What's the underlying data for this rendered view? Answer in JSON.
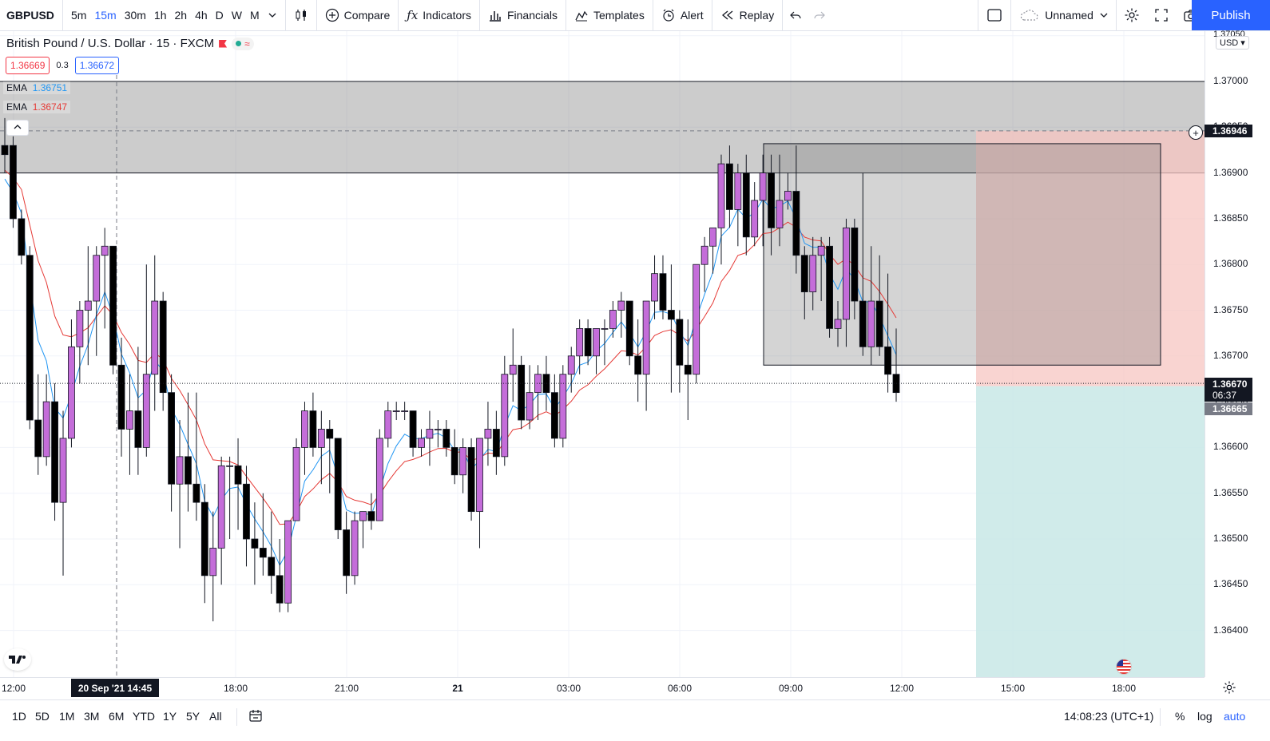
{
  "toolbar": {
    "symbol": "GBPUSD",
    "intervals": [
      "5m",
      "15m",
      "30m",
      "1h",
      "2h",
      "4h",
      "D",
      "W",
      "M"
    ],
    "active_interval": "15m",
    "compare": "Compare",
    "indicators": "Indicators",
    "financials": "Financials",
    "templates": "Templates",
    "alert": "Alert",
    "replay": "Replay",
    "layout_name": "Unnamed",
    "publish": "Publish"
  },
  "legend": {
    "title": "British Pound / U.S. Dollar · 15 · FXCM",
    "bid": "1.36669",
    "spread": "0.3",
    "ask": "1.36672",
    "ema1_label": "EMA",
    "ema1_value": "1.36751",
    "ema2_label": "EMA",
    "ema2_value": "1.36747"
  },
  "colors": {
    "bull": "#c46dd9",
    "bear": "#000000",
    "ema_fast": "#2196f3",
    "ema_slow": "#e53935",
    "accent": "#2962ff",
    "stop_zone": "#f7c5c1",
    "target_zone": "#c8e8e6"
  },
  "price_axis": {
    "currency": "USD",
    "ticks": [
      "1.37050",
      "1.37000",
      "1.36950",
      "1.36900",
      "1.36850",
      "1.36800",
      "1.36750",
      "1.36700",
      "1.36650",
      "1.36600",
      "1.36550",
      "1.36500",
      "1.36450",
      "1.36400"
    ],
    "crosshair_price": "1.36946",
    "last_price": "1.36670",
    "countdown": "06:37",
    "bid_tag": "1.36665"
  },
  "time_axis": {
    "labels": [
      "12:00",
      "18:00",
      "21:00",
      "21",
      "03:00",
      "06:00",
      "09:00",
      "12:00",
      "15:00",
      "18:00"
    ],
    "crosshair_time": "20 Sep '21   14:45"
  },
  "bottom": {
    "ranges": [
      "1D",
      "5D",
      "1M",
      "3M",
      "6M",
      "YTD",
      "1Y",
      "5Y",
      "All"
    ],
    "clock": "14:08:23 (UTC+1)",
    "percent": "%",
    "log": "log",
    "auto": "auto"
  },
  "chart_data": {
    "type": "candlestick",
    "x_ticks": [
      "12:00",
      "18:00",
      "21:00",
      "21",
      "03:00",
      "06:00",
      "09:00",
      "12:00",
      "15:00",
      "18:00"
    ],
    "y_ticks": [
      1.3705,
      1.37,
      1.3695,
      1.369,
      1.3685,
      1.368,
      1.3675,
      1.367,
      1.3665,
      1.366,
      1.3655,
      1.365,
      1.3645,
      1.364
    ],
    "ylim": [
      1.3636,
      1.3708
    ],
    "candles": [
      [
        1.3693,
        1.3696,
        1.369,
        1.3692
      ],
      [
        1.3693,
        1.3694,
        1.3684,
        1.3685
      ],
      [
        1.3685,
        1.3686,
        1.368,
        1.3681
      ],
      [
        1.3681,
        1.3682,
        1.3662,
        1.3663
      ],
      [
        1.3663,
        1.3668,
        1.3657,
        1.3659
      ],
      [
        1.3659,
        1.3668,
        1.3658,
        1.3665
      ],
      [
        1.3665,
        1.3667,
        1.3652,
        1.3654
      ],
      [
        1.3654,
        1.3664,
        1.3646,
        1.3661
      ],
      [
        1.3661,
        1.3674,
        1.366,
        1.3671
      ],
      [
        1.3671,
        1.3676,
        1.3667,
        1.3675
      ],
      [
        1.3675,
        1.3682,
        1.3669,
        1.3676
      ],
      [
        1.3676,
        1.3682,
        1.367,
        1.3681
      ],
      [
        1.3681,
        1.3684,
        1.3673,
        1.3682
      ],
      [
        1.3682,
        1.3682,
        1.3668,
        1.3669
      ],
      [
        1.3669,
        1.3672,
        1.3659,
        1.3662
      ],
      [
        1.3662,
        1.3668,
        1.3657,
        1.3664
      ],
      [
        1.3664,
        1.3671,
        1.3657,
        1.366
      ],
      [
        1.366,
        1.368,
        1.3659,
        1.3668
      ],
      [
        1.3668,
        1.3681,
        1.3664,
        1.3676
      ],
      [
        1.3676,
        1.3677,
        1.3664,
        1.3666
      ],
      [
        1.3666,
        1.3668,
        1.3653,
        1.3656
      ],
      [
        1.3656,
        1.3663,
        1.3649,
        1.3659
      ],
      [
        1.3659,
        1.3666,
        1.3653,
        1.3656
      ],
      [
        1.3656,
        1.3666,
        1.3652,
        1.3654
      ],
      [
        1.3654,
        1.3656,
        1.3643,
        1.3646
      ],
      [
        1.3646,
        1.3653,
        1.3641,
        1.3649
      ],
      [
        1.3649,
        1.3659,
        1.3645,
        1.3658
      ],
      [
        1.3658,
        1.3659,
        1.365,
        1.3658
      ],
      [
        1.3658,
        1.3661,
        1.3651,
        1.3656
      ],
      [
        1.3656,
        1.3658,
        1.3647,
        1.365
      ],
      [
        1.365,
        1.3654,
        1.3645,
        1.3649
      ],
      [
        1.3649,
        1.3655,
        1.3646,
        1.3648
      ],
      [
        1.3648,
        1.3653,
        1.3644,
        1.3646
      ],
      [
        1.3646,
        1.365,
        1.3642,
        1.3643
      ],
      [
        1.3643,
        1.3652,
        1.3642,
        1.3652
      ],
      [
        1.3652,
        1.3661,
        1.3652,
        1.366
      ],
      [
        1.366,
        1.3665,
        1.3657,
        1.3664
      ],
      [
        1.3664,
        1.3666,
        1.3659,
        1.366
      ],
      [
        1.366,
        1.3664,
        1.3656,
        1.3662
      ],
      [
        1.3662,
        1.3663,
        1.3655,
        1.3661
      ],
      [
        1.3661,
        1.3661,
        1.365,
        1.3651
      ],
      [
        1.3651,
        1.3653,
        1.3644,
        1.3646
      ],
      [
        1.3646,
        1.3653,
        1.3645,
        1.3652
      ],
      [
        1.3652,
        1.3653,
        1.3649,
        1.3653
      ],
      [
        1.3653,
        1.3655,
        1.3651,
        1.3652
      ],
      [
        1.3652,
        1.3662,
        1.3652,
        1.3661
      ],
      [
        1.3661,
        1.3665,
        1.366,
        1.3664
      ],
      [
        1.3664,
        1.3665,
        1.3663,
        1.3664
      ],
      [
        1.3664,
        1.3665,
        1.3663,
        1.3664
      ],
      [
        1.3664,
        1.3664,
        1.3659,
        1.366
      ],
      [
        1.366,
        1.3662,
        1.3659,
        1.3661
      ],
      [
        1.3661,
        1.3664,
        1.3658,
        1.3662
      ],
      [
        1.3662,
        1.3663,
        1.366,
        1.3662
      ],
      [
        1.3662,
        1.3663,
        1.3659,
        1.366
      ],
      [
        1.366,
        1.3662,
        1.3656,
        1.3657
      ],
      [
        1.3657,
        1.3661,
        1.3655,
        1.366
      ],
      [
        1.366,
        1.3661,
        1.3652,
        1.3653
      ],
      [
        1.3653,
        1.3661,
        1.3649,
        1.3661
      ],
      [
        1.3661,
        1.3665,
        1.3658,
        1.3662
      ],
      [
        1.3662,
        1.3664,
        1.3657,
        1.3659
      ],
      [
        1.3659,
        1.367,
        1.3658,
        1.3668
      ],
      [
        1.3668,
        1.3673,
        1.3665,
        1.3669
      ],
      [
        1.3669,
        1.367,
        1.3662,
        1.3663
      ],
      [
        1.3663,
        1.3669,
        1.3662,
        1.3666
      ],
      [
        1.3666,
        1.3669,
        1.3663,
        1.3668
      ],
      [
        1.3668,
        1.367,
        1.3664,
        1.3666
      ],
      [
        1.3666,
        1.3668,
        1.366,
        1.3661
      ],
      [
        1.3661,
        1.3669,
        1.366,
        1.3668
      ],
      [
        1.3668,
        1.3671,
        1.3666,
        1.367
      ],
      [
        1.367,
        1.3674,
        1.3668,
        1.3673
      ],
      [
        1.3673,
        1.3674,
        1.3669,
        1.367
      ],
      [
        1.367,
        1.3673,
        1.3668,
        1.3673
      ],
      [
        1.3673,
        1.3674,
        1.3669,
        1.3673
      ],
      [
        1.3673,
        1.3676,
        1.3672,
        1.3675
      ],
      [
        1.3675,
        1.3677,
        1.3672,
        1.3676
      ],
      [
        1.3676,
        1.3676,
        1.3669,
        1.367
      ],
      [
        1.367,
        1.3674,
        1.3665,
        1.3668
      ],
      [
        1.3668,
        1.3676,
        1.3664,
        1.3676
      ],
      [
        1.3676,
        1.3681,
        1.3674,
        1.3679
      ],
      [
        1.3679,
        1.3681,
        1.3674,
        1.3675
      ],
      [
        1.3675,
        1.368,
        1.3666,
        1.3674
      ],
      [
        1.3674,
        1.3675,
        1.3666,
        1.3669
      ],
      [
        1.3669,
        1.3674,
        1.3663,
        1.3668
      ],
      [
        1.3668,
        1.368,
        1.3667,
        1.368
      ],
      [
        1.368,
        1.3683,
        1.3677,
        1.3682
      ],
      [
        1.3682,
        1.3684,
        1.3679,
        1.3684
      ],
      [
        1.3684,
        1.3692,
        1.368,
        1.3691
      ],
      [
        1.3691,
        1.3693,
        1.3684,
        1.3686
      ],
      [
        1.3686,
        1.3691,
        1.3682,
        1.369
      ],
      [
        1.369,
        1.3692,
        1.3681,
        1.3683
      ],
      [
        1.3683,
        1.3689,
        1.3682,
        1.3687
      ],
      [
        1.3687,
        1.3692,
        1.3682,
        1.369
      ],
      [
        1.369,
        1.3692,
        1.3681,
        1.3684
      ],
      [
        1.3684,
        1.3692,
        1.3682,
        1.3687
      ],
      [
        1.3687,
        1.369,
        1.3686,
        1.3688
      ],
      [
        1.3688,
        1.3693,
        1.3679,
        1.3681
      ],
      [
        1.3681,
        1.3682,
        1.3674,
        1.3677
      ],
      [
        1.3677,
        1.3683,
        1.3675,
        1.3681
      ],
      [
        1.3681,
        1.3683,
        1.3676,
        1.3682
      ],
      [
        1.3682,
        1.3683,
        1.3672,
        1.3673
      ],
      [
        1.3673,
        1.3676,
        1.3671,
        1.3674
      ],
      [
        1.3674,
        1.3685,
        1.3671,
        1.3684
      ],
      [
        1.3684,
        1.3685,
        1.3674,
        1.3676
      ],
      [
        1.3676,
        1.369,
        1.367,
        1.3671
      ],
      [
        1.3671,
        1.3682,
        1.3669,
        1.3676
      ],
      [
        1.3676,
        1.3681,
        1.367,
        1.3671
      ],
      [
        1.3671,
        1.3679,
        1.3666,
        1.3668
      ],
      [
        1.3668,
        1.3673,
        1.3665,
        1.3666
      ]
    ],
    "ema_fast_last": 1.36751,
    "ema_slow_last": 1.36747,
    "horizontal_line": 1.36946,
    "resistance_zone": [
      1.369,
      1.37
    ],
    "range_box": [
      1.3669,
      1.36932
    ],
    "short_position": {
      "entry": 1.36667,
      "stop": 1.36946,
      "target": 1.3636
    }
  }
}
